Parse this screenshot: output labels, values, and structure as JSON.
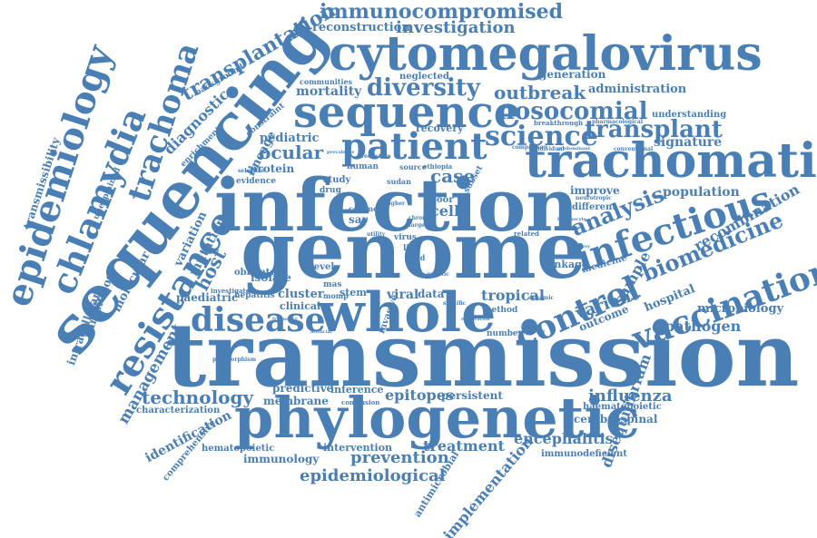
{
  "color": "#4a7fb5",
  "words": {
    "transmission": "transmission",
    "genome": "genome",
    "infection": "infection",
    "sequencing": "sequencing",
    "phylogenetic": "phylogenetic",
    "whole": "whole",
    "cytomegalovirus": "cytomegalovirus",
    "trachomatis": "trachomatis",
    "sequence": "sequence",
    "patient": "patient",
    "infectious": "infectious",
    "epidemiology": "epidemiology",
    "chlamydia": "chlamydia",
    "trachoma": "trachoma",
    "resistance": "resistance",
    "disease": "disease",
    "control": "control",
    "vaccination": "vaccination",
    "science": "science",
    "nosocomial": "nosocomial",
    "diversity": "diversity",
    "transplant": "transplant",
    "outbreak": "outbreak",
    "biomedicine": "biomedicine",
    "analysis": "analysis",
    "immunocompromised": "immunocompromised",
    "investigation": "investigation",
    "transplantation": "transplantation",
    "reconstruction": "reconstruction",
    "technology": "technology",
    "prevention": "prevention",
    "treatment": "treatment",
    "epidemiological": "epidemiological",
    "influenza": "influenza",
    "encephalitis": "encephalitis",
    "epitopes": "epitopes",
    "pathogen": "pathogen",
    "recombination": "recombination",
    "population": "population",
    "ocular": "ocular",
    "case": "case",
    "mortality": "mortality",
    "host": "host",
    "management": "management",
    "variant": "variant",
    "tropical": "tropical",
    "sample": "sample",
    "hospital": "hospital",
    "microbiology": "microbiology",
    "disequilibrium": "disequilibrium",
    "implementation": "implementation",
    "identification": "identification",
    "diagnostic": "diagnostic",
    "transmissibility": "transmissibility",
    "intracellular": "intracellular",
    "parasitology": "parasitology",
    "molecular": "molecular",
    "mutation": "mutation",
    "variation": "variation",
    "lineage": "lineage",
    "pediatric": "pediatric",
    "paediatric": "paediatric",
    "protein": "protein",
    "cluster": "cluster",
    "clinical": "clinical",
    "stem": "stem",
    "viral": "viral",
    "data": "data",
    "membrane": "membrane",
    "inference": "inference",
    "predictive": "predictive",
    "persistent": "persistent",
    "characterization": "characterization",
    "haematopoietic": "haematopoietic",
    "cerebrospinal": "cerebrospinal",
    "immunology": "immunology",
    "intervention": "intervention",
    "hematopoietic": "hematopoietic",
    "comprehensive": "comprehensive",
    "antimicrobial": "antimicrobial",
    "immunodeficient": "immunodeficient",
    "cell": "cell",
    "signature": "signature",
    "administration": "administration",
    "generation": "generation",
    "understanding": "understanding",
    "improve": "improve",
    "different": "different",
    "linkage": "linkage",
    "medicine": "medicine",
    "outcome": "outcome",
    "recovery": "recovery",
    "neglected": "neglected",
    "communities": "communities",
    "background": "background",
    "enrichment": "enrichment",
    "constraint": "constraint",
    "evidence": "evidence",
    "isolate": "isolate",
    "obligate": "obligate",
    "investigate": "investigate",
    "hepatitis": "hepatitis",
    "unexplained": "unexplained",
    "level": "level",
    "method": "method",
    "number": "number",
    "mas": "mas",
    "momp": "momp",
    "invasive": "invasive",
    "sar": "sar",
    "common": "common",
    "study": "study",
    "drug": "drug",
    "human": "human",
    "sudan": "sudan",
    "ethiopia": "ethiopia",
    "source": "source",
    "poor": "poor",
    "subset": "subset",
    "virus": "virus",
    "life": "life",
    "child": "child",
    "breakthrough": "breakthrough",
    "pharmacological": "pharmacological",
    "conventional": "conventional",
    "comparison": "comparison",
    "individual": "individual",
    "predominant": "predominant",
    "selective": "selective",
    "related": "related",
    "neurotropic": "neurotropic",
    "lymphocyte": "lymphocyte",
    "polymorphism": "polymorphism",
    "conclusion": "conclusion",
    "higher": "higher",
    "utility": "utility",
    "reduction": "reduction",
    "prevalence": "prevalence",
    "chronic": "chronic",
    "target": "target",
    "specific": "specific",
    "dynamic": "dynamic",
    "artificial": "artificial",
    "frequency": "frequency",
    "genetic": "genetic",
    "exploration": "exploration",
    "vaccinated": "vaccinated",
    "survey": "survey",
    "advantage": "advantage"
  }
}
